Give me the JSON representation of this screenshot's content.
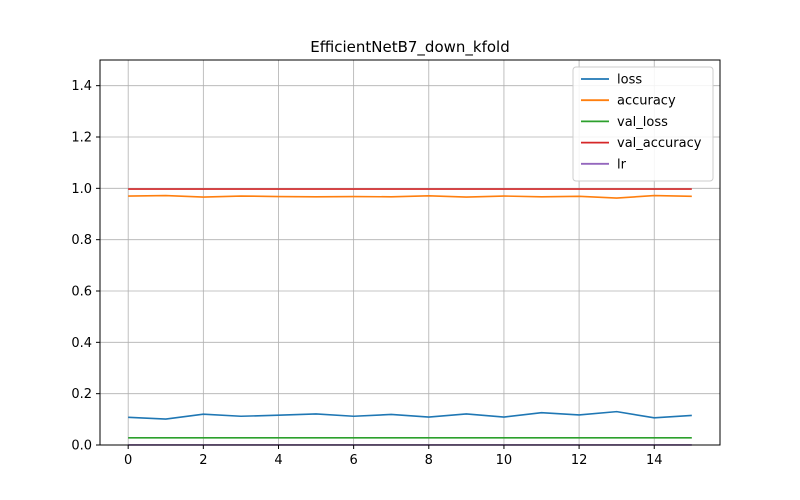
{
  "chart_data": {
    "type": "line",
    "title": "EfficientNetB7_down_kfold",
    "xlabel": "",
    "ylabel": "",
    "xlim": [
      -0.75,
      15.75
    ],
    "ylim": [
      0,
      1.5
    ],
    "xticks": [
      0,
      2,
      4,
      6,
      8,
      10,
      12,
      14
    ],
    "yticks": [
      0.0,
      0.2,
      0.4,
      0.6,
      0.8,
      1.0,
      1.2,
      1.4
    ],
    "grid": true,
    "legend_position": "top-right",
    "x": [
      0,
      1,
      2,
      3,
      4,
      5,
      6,
      7,
      8,
      9,
      10,
      11,
      12,
      13,
      14,
      15
    ],
    "series": [
      {
        "name": "loss",
        "color": "#1f77b4",
        "values": [
          0.108,
          0.101,
          0.12,
          0.112,
          0.116,
          0.121,
          0.112,
          0.119,
          0.109,
          0.121,
          0.109,
          0.126,
          0.117,
          0.13,
          0.106,
          0.115
        ]
      },
      {
        "name": "accuracy",
        "color": "#ff7f0e",
        "values": [
          0.97,
          0.972,
          0.966,
          0.97,
          0.968,
          0.967,
          0.968,
          0.967,
          0.971,
          0.966,
          0.97,
          0.967,
          0.969,
          0.962,
          0.972,
          0.969
        ]
      },
      {
        "name": "val_loss",
        "color": "#2ca02c",
        "values": [
          0.028,
          0.028,
          0.028,
          0.028,
          0.028,
          0.028,
          0.028,
          0.028,
          0.028,
          0.028,
          0.028,
          0.028,
          0.028,
          0.028,
          0.028,
          0.028
        ]
      },
      {
        "name": "val_accuracy",
        "color": "#d62728",
        "values": [
          0.997,
          0.997,
          0.997,
          0.997,
          0.997,
          0.997,
          0.997,
          0.997,
          0.997,
          0.997,
          0.997,
          0.997,
          0.997,
          0.997,
          0.997,
          0.997
        ]
      },
      {
        "name": "lr",
        "color": "#9467bd",
        "values": [
          0.0001,
          0.0001,
          0.0001,
          0.0001,
          0.0001,
          0.0001,
          0.0001,
          0.0001,
          0.0001,
          0.0001,
          0.0001,
          0.0001,
          0.0001,
          0.0001,
          0.0001,
          0.0001
        ]
      }
    ]
  }
}
